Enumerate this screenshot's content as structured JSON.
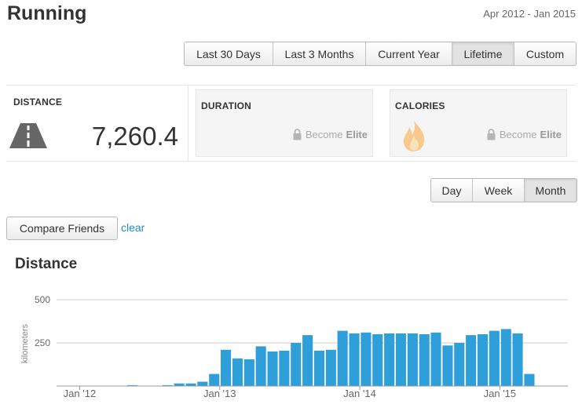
{
  "header": {
    "title": "Running",
    "date_range": "Apr 2012 - Jan 2015"
  },
  "range_buttons": [
    {
      "label": "Last 30 Days",
      "active": false
    },
    {
      "label": "Last 3 Months",
      "active": false
    },
    {
      "label": "Current Year",
      "active": false
    },
    {
      "label": "Lifetime",
      "active": true
    },
    {
      "label": "Custom",
      "active": false
    }
  ],
  "stats": {
    "distance": {
      "label": "DISTANCE",
      "value": "7,260.4",
      "icon": "road-icon"
    },
    "duration": {
      "label": "DURATION",
      "lock_text": "Become",
      "lock_strong": "Elite",
      "icon": "lock-icon"
    },
    "calories": {
      "label": "CALORIES",
      "lock_text": "Become",
      "lock_strong": "Elite",
      "icon": "flame-icon"
    }
  },
  "period_buttons": [
    {
      "label": "Day",
      "active": false
    },
    {
      "label": "Week",
      "active": false
    },
    {
      "label": "Month",
      "active": true
    }
  ],
  "compare": {
    "label": "Compare Friends",
    "clear": "clear"
  },
  "chart_section": {
    "title": "Distance"
  },
  "colors": {
    "bar": "#2e9fd8",
    "link": "#1d8fc4",
    "grid": "#cccccc",
    "flame": "#f7c98c"
  },
  "chart_data": {
    "type": "bar",
    "ylabel": "kilometers",
    "ylim": [
      0,
      500
    ],
    "yticks": [
      "500",
      "250"
    ],
    "xtick_labels": [
      "Jan '12",
      "Jan '13",
      "Jan '14",
      "Jan '15"
    ],
    "xtick_month_index": [
      0,
      12,
      24,
      36
    ],
    "grid": true,
    "months_start": "Jan 2012",
    "values": [
      0,
      0,
      0,
      0,
      0,
      0,
      5,
      0,
      0,
      5,
      15,
      15,
      25,
      70,
      210,
      160,
      155,
      230,
      200,
      205,
      250,
      295,
      205,
      210,
      320,
      305,
      310,
      300,
      305,
      305,
      305,
      300,
      310,
      235,
      250,
      295,
      300,
      320,
      330,
      305,
      70,
      0
    ]
  }
}
